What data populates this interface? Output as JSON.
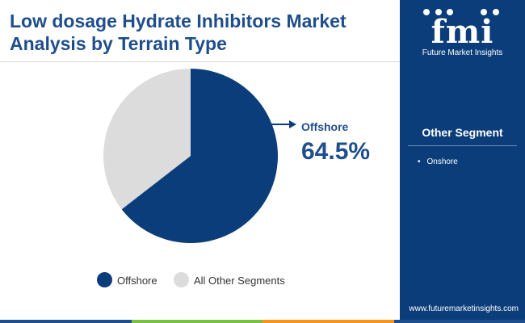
{
  "title_line1": "Low dosage Hydrate Inhibitors Market",
  "title_line2": "Analysis by Terrain Type",
  "brand": {
    "logo_text": "fmi",
    "name": "Future Market Insights",
    "website": "www.futuremarketinsights.com"
  },
  "side_panel": {
    "title": "Other Segment",
    "items": [
      "Onshore"
    ]
  },
  "callout": {
    "label": "Offshore",
    "value": "64.5%"
  },
  "chart_data": {
    "type": "pie",
    "title": "Low dosage Hydrate Inhibitors Market Analysis by Terrain Type",
    "slices": [
      {
        "label": "Offshore",
        "value": 64.5,
        "color": "#0b3d7a"
      },
      {
        "label": "All Other Segments",
        "value": 35.5,
        "color": "#dcdcdc"
      }
    ],
    "start_angle_deg": 0,
    "direction": "clockwise",
    "legend_position": "bottom"
  },
  "colors": {
    "primary": "#0b3d7a",
    "title": "#1f4e8c",
    "other": "#dcdcdc",
    "bar": [
      "#1f4e8c",
      "#7ac143",
      "#f7941d",
      "#1f4e8c"
    ]
  }
}
